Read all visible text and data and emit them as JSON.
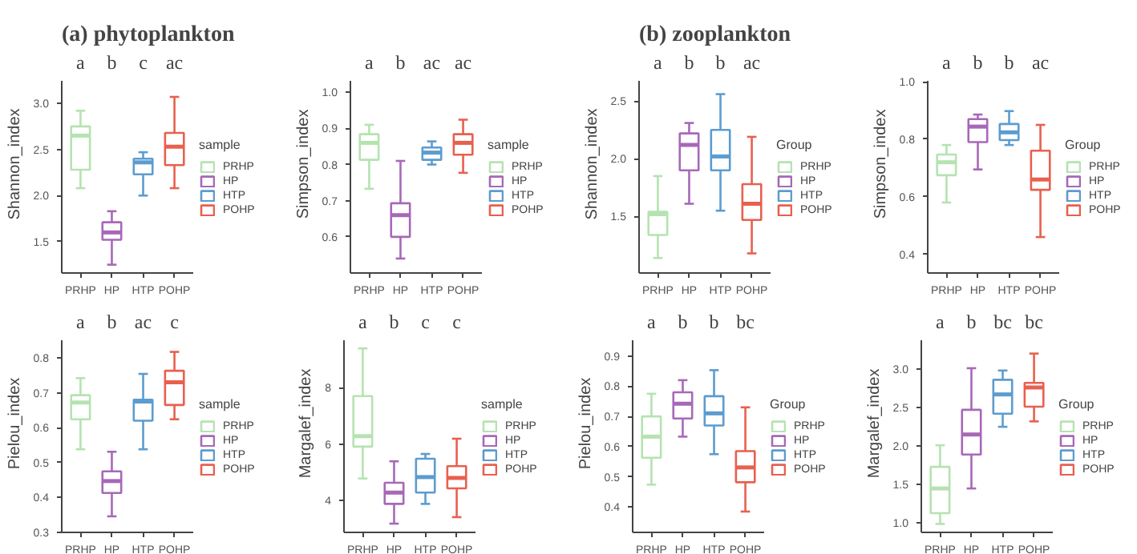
{
  "chart_data": [
    {
      "type": "box",
      "title": "(a) phytoplankton",
      "ylabel": "Shannon_index",
      "legend_title": "sample",
      "legend": "right",
      "categories": [
        "PRHP",
        "HP",
        "HTP",
        "POHP"
      ],
      "series": [
        {
          "name": "PRHP",
          "color": "#b5e3b0",
          "boxes": [
            {
              "low": 2.08,
              "q1": 2.28,
              "median": 2.65,
              "q3": 2.75,
              "high": 2.92
            },
            null,
            null,
            null
          ]
        },
        {
          "name": "HP",
          "color": "#a768b8",
          "boxes": [
            null,
            {
              "low": 1.25,
              "q1": 1.52,
              "median": 1.6,
              "q3": 1.71,
              "high": 1.83
            },
            null,
            null
          ]
        },
        {
          "name": "HTP",
          "color": "#5c9ccf",
          "boxes": [
            null,
            null,
            {
              "low": 2.0,
              "q1": 2.23,
              "median": 2.36,
              "q3": 2.4,
              "high": 2.47
            },
            null
          ]
        },
        {
          "name": "POHP",
          "color": "#e8604f",
          "boxes": [
            null,
            null,
            null,
            {
              "low": 2.08,
              "q1": 2.33,
              "median": 2.53,
              "q3": 2.68,
              "high": 3.07
            }
          ]
        }
      ],
      "ylim": [
        1.16,
        3.25
      ],
      "yticks": [
        1.5,
        {
          "value": 2,
          "label": "2.0"
        },
        2.5,
        {
          "value": 3,
          "label": "3.0"
        }
      ],
      "annotations": [
        "a",
        "b",
        "c",
        "ac"
      ]
    },
    {
      "type": "box",
      "ylabel": "Simpson_index",
      "legend_title": "sample",
      "legend": "right",
      "categories": [
        "PRHP",
        "HP",
        "HTP",
        "POHP"
      ],
      "series": [
        {
          "name": "PRHP",
          "color": "#b5e3b0",
          "boxes": [
            {
              "low": 0.733,
              "q1": 0.813,
              "median": 0.86,
              "q3": 0.884,
              "high": 0.91
            },
            null,
            null,
            null
          ]
        },
        {
          "name": "HP",
          "color": "#a768b8",
          "boxes": [
            null,
            {
              "low": 0.54,
              "q1": 0.6,
              "median": 0.66,
              "q3": 0.693,
              "high": 0.81
            },
            null,
            null
          ]
        },
        {
          "name": "HTP",
          "color": "#5c9ccf",
          "boxes": [
            null,
            null,
            {
              "low": 0.8,
              "q1": 0.813,
              "median": 0.833,
              "q3": 0.847,
              "high": 0.864
            },
            null
          ]
        },
        {
          "name": "POHP",
          "color": "#e8604f",
          "boxes": [
            null,
            null,
            null,
            {
              "low": 0.777,
              "q1": 0.827,
              "median": 0.86,
              "q3": 0.884,
              "high": 0.924
            }
          ]
        }
      ],
      "ylim": [
        0.5,
        1.033
      ],
      "yticks": [
        0.6,
        0.7,
        0.8,
        0.9,
        {
          "value": 1,
          "label": "1.0"
        }
      ],
      "annotations": [
        "a",
        "b",
        "ac",
        "ac"
      ]
    },
    {
      "type": "box",
      "title": "(b) zooplankton",
      "ylabel": "Shannon_index",
      "legend_title": "Group",
      "legend": "right",
      "categories": [
        "PRHP",
        "HP",
        "HTP",
        "POHP"
      ],
      "series": [
        {
          "name": "PRHP",
          "color": "#b5e3b0",
          "boxes": [
            {
              "low": 1.14,
              "q1": 1.34,
              "median": 1.52,
              "q3": 1.54,
              "high": 1.85
            },
            null,
            null,
            null
          ]
        },
        {
          "name": "HP",
          "color": "#a768b8",
          "boxes": [
            null,
            {
              "low": 1.61,
              "q1": 1.9,
              "median": 2.12,
              "q3": 2.22,
              "high": 2.31
            },
            null,
            null
          ]
        },
        {
          "name": "HTP",
          "color": "#5c9ccf",
          "boxes": [
            null,
            null,
            {
              "low": 1.55,
              "q1": 1.9,
              "median": 2.02,
              "q3": 2.25,
              "high": 2.56
            },
            null
          ]
        },
        {
          "name": "POHP",
          "color": "#e8604f",
          "boxes": [
            null,
            null,
            null,
            {
              "low": 1.18,
              "q1": 1.47,
              "median": 1.61,
              "q3": 1.78,
              "high": 2.19
            }
          ]
        }
      ],
      "ylim": [
        1.01,
        2.68
      ],
      "yticks": [
        1.5,
        {
          "value": 2,
          "label": "2.0"
        },
        2.5
      ],
      "annotations": [
        "a",
        "b",
        "b",
        "ac"
      ]
    },
    {
      "type": "box",
      "ylabel": "Simpson_index",
      "legend_title": "Group",
      "legend": "right",
      "categories": [
        "PRHP",
        "HP",
        "HTP",
        "POHP"
      ],
      "series": [
        {
          "name": "PRHP",
          "color": "#b5e3b0",
          "boxes": [
            {
              "low": 0.58,
              "q1": 0.675,
              "median": 0.72,
              "q3": 0.747,
              "high": 0.78
            },
            null,
            null,
            null
          ]
        },
        {
          "name": "HP",
          "color": "#a768b8",
          "boxes": [
            null,
            {
              "low": 0.695,
              "q1": 0.79,
              "median": 0.844,
              "q3": 0.87,
              "high": 0.886
            },
            null,
            null
          ]
        },
        {
          "name": "HTP",
          "color": "#5c9ccf",
          "boxes": [
            null,
            null,
            {
              "low": 0.78,
              "q1": 0.797,
              "median": 0.824,
              "q3": 0.853,
              "high": 0.898
            },
            null
          ]
        },
        {
          "name": "POHP",
          "color": "#e8604f",
          "boxes": [
            null,
            null,
            null,
            {
              "low": 0.46,
              "q1": 0.624,
              "median": 0.66,
              "q3": 0.76,
              "high": 0.85
            }
          ]
        }
      ],
      "ylim": [
        0.335,
        1.005
      ],
      "yticks": [
        0.4,
        0.6,
        0.8,
        {
          "value": 1,
          "label": "1.0"
        }
      ],
      "annotations": [
        "a",
        "b",
        "b",
        "ac"
      ]
    },
    {
      "type": "box",
      "ylabel": "Pielou_index",
      "legend_title": "sample",
      "legend": "right",
      "categories": [
        "PRHP",
        "HP",
        "HTP",
        "POHP"
      ],
      "series": [
        {
          "name": "PRHP",
          "color": "#b5e3b0",
          "boxes": [
            {
              "low": 0.538,
              "q1": 0.624,
              "median": 0.672,
              "q3": 0.693,
              "high": 0.742
            },
            null,
            null,
            null
          ]
        },
        {
          "name": "HP",
          "color": "#a768b8",
          "boxes": [
            null,
            {
              "low": 0.346,
              "q1": 0.413,
              "median": 0.447,
              "q3": 0.475,
              "high": 0.531
            },
            null,
            null
          ]
        },
        {
          "name": "HTP",
          "color": "#5c9ccf",
          "boxes": [
            null,
            null,
            {
              "low": 0.538,
              "q1": 0.62,
              "median": 0.675,
              "q3": 0.68,
              "high": 0.754
            },
            null
          ]
        },
        {
          "name": "POHP",
          "color": "#e8604f",
          "boxes": [
            null,
            null,
            null,
            {
              "low": 0.624,
              "q1": 0.665,
              "median": 0.73,
              "q3": 0.763,
              "high": 0.817
            }
          ]
        }
      ],
      "ylim": [
        0.3,
        0.852
      ],
      "yticks": [
        0.3,
        0.4,
        0.5,
        0.6,
        0.7,
        0.8
      ],
      "annotations": [
        "a",
        "b",
        "ac",
        "c"
      ]
    },
    {
      "type": "box",
      "ylabel": "Margalef_index",
      "legend_title": "sample",
      "legend": "right",
      "categories": [
        "PRHP",
        "HP",
        "HTP",
        "POHP"
      ],
      "series": [
        {
          "name": "PRHP",
          "color": "#b5e3b0",
          "boxes": [
            {
              "low": 4.78,
              "q1": 5.91,
              "median": 6.28,
              "q3": 7.7,
              "high": 9.39
            },
            null,
            null,
            null
          ]
        },
        {
          "name": "HP",
          "color": "#a768b8",
          "boxes": [
            null,
            {
              "low": 3.18,
              "q1": 3.88,
              "median": 4.28,
              "q3": 4.63,
              "high": 5.39
            },
            null,
            null
          ]
        },
        {
          "name": "HTP",
          "color": "#5c9ccf",
          "boxes": [
            null,
            null,
            {
              "low": 3.88,
              "q1": 4.28,
              "median": 4.83,
              "q3": 5.48,
              "high": 5.65
            },
            null
          ]
        },
        {
          "name": "POHP",
          "color": "#e8604f",
          "boxes": [
            null,
            null,
            null,
            {
              "low": 3.41,
              "q1": 4.43,
              "median": 4.8,
              "q3": 5.22,
              "high": 6.19
            }
          ]
        }
      ],
      "ylim": [
        2.87,
        9.7
      ],
      "yticks": [
        4,
        6,
        8
      ],
      "annotations": [
        "a",
        "b",
        "c",
        "c"
      ]
    },
    {
      "type": "box",
      "ylabel": "Pielou_index",
      "legend_title": "Group",
      "legend": "right",
      "categories": [
        "PRHP",
        "HP",
        "HTP",
        "POHP"
      ],
      "series": [
        {
          "name": "PRHP",
          "color": "#b5e3b0",
          "boxes": [
            {
              "low": 0.474,
              "q1": 0.563,
              "median": 0.633,
              "q3": 0.7,
              "high": 0.775
            },
            null,
            null,
            null
          ]
        },
        {
          "name": "HP",
          "color": "#a768b8",
          "boxes": [
            null,
            {
              "low": 0.633,
              "q1": 0.693,
              "median": 0.742,
              "q3": 0.78,
              "high": 0.82
            },
            null,
            null
          ]
        },
        {
          "name": "HTP",
          "color": "#5c9ccf",
          "boxes": [
            null,
            null,
            {
              "low": 0.575,
              "q1": 0.67,
              "median": 0.71,
              "q3": 0.767,
              "high": 0.853
            },
            null
          ]
        },
        {
          "name": "POHP",
          "color": "#e8604f",
          "boxes": [
            null,
            null,
            null,
            {
              "low": 0.385,
              "q1": 0.482,
              "median": 0.531,
              "q3": 0.585,
              "high": 0.73
            }
          ]
        }
      ],
      "ylim": [
        0.316,
        0.954
      ],
      "yticks": [
        0.4,
        0.5,
        0.6,
        0.7,
        0.8,
        0.9
      ],
      "annotations": [
        "a",
        "b",
        "b",
        "bc"
      ]
    },
    {
      "type": "box",
      "ylabel": "Margalef_index",
      "legend_title": "Group",
      "legend": "right",
      "categories": [
        "PRHP",
        "HP",
        "HTP",
        "POHP"
      ],
      "series": [
        {
          "name": "PRHP",
          "color": "#b5e3b0",
          "boxes": [
            {
              "low": 0.99,
              "q1": 1.13,
              "median": 1.45,
              "q3": 1.73,
              "high": 2.01
            },
            null,
            null,
            null
          ]
        },
        {
          "name": "HP",
          "color": "#a768b8",
          "boxes": [
            null,
            {
              "low": 1.45,
              "q1": 1.89,
              "median": 2.15,
              "q3": 2.47,
              "high": 3.01
            },
            null,
            null
          ]
        },
        {
          "name": "HTP",
          "color": "#5c9ccf",
          "boxes": [
            null,
            null,
            {
              "low": 2.25,
              "q1": 2.42,
              "median": 2.67,
              "q3": 2.86,
              "high": 2.98
            },
            null
          ]
        },
        {
          "name": "POHP",
          "color": "#e8604f",
          "boxes": [
            null,
            null,
            null,
            {
              "low": 2.32,
              "q1": 2.51,
              "median": 2.76,
              "q3": 2.82,
              "high": 3.2
            }
          ]
        }
      ],
      "ylim": [
        0.88,
        3.38
      ],
      "yticks": [
        {
          "value": 1,
          "label": "1.0"
        },
        1.5,
        {
          "value": 2,
          "label": "2.0"
        },
        2.5,
        {
          "value": 3,
          "label": "3.0"
        }
      ],
      "annotations": [
        "a",
        "b",
        "bc",
        "bc"
      ]
    }
  ]
}
